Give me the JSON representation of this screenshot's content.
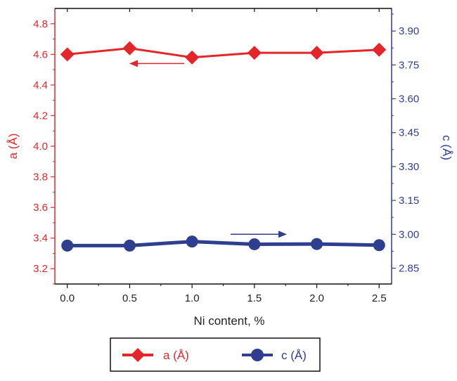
{
  "chart_data": {
    "type": "line",
    "x": [
      0.0,
      0.5,
      1.0,
      1.5,
      2.0,
      2.5
    ],
    "xlabel": "Ni content, %",
    "xticks": [
      "0.0",
      "0.5",
      "1.0",
      "1.5",
      "2.0",
      "2.5"
    ],
    "xlim": [
      -0.1,
      2.6
    ],
    "series": [
      {
        "name": "a (Å)",
        "axis": "left",
        "color": "#e4262b",
        "marker": "diamond",
        "values": [
          4.6,
          4.64,
          4.58,
          4.61,
          4.61,
          4.63
        ]
      },
      {
        "name": "c (Å)",
        "axis": "right",
        "color": "#2f3f8f",
        "marker": "circle",
        "values": [
          2.95,
          2.95,
          2.968,
          2.956,
          2.957,
          2.952
        ]
      }
    ],
    "y_left": {
      "label": "a (Å)",
      "lim": [
        3.1,
        4.9
      ],
      "ticks": [
        "3.2",
        "3.4",
        "3.6",
        "3.8",
        "4.0",
        "4.2",
        "4.4",
        "4.6",
        "4.8"
      ]
    },
    "y_right": {
      "label": "c (Å)",
      "lim": [
        2.78,
        4.0
      ],
      "ticks": [
        "2.85",
        "3.00",
        "3.15",
        "3.30",
        "3.45",
        "3.60",
        "3.75",
        "3.90"
      ]
    },
    "legend": {
      "position": "bottom",
      "entries": [
        "a (Å)",
        "c (Å)"
      ]
    },
    "annotations": [
      {
        "type": "arrow",
        "direction": "left",
        "series": "a (Å)"
      },
      {
        "type": "arrow",
        "direction": "right",
        "series": "c (Å)"
      }
    ],
    "grid": false
  }
}
